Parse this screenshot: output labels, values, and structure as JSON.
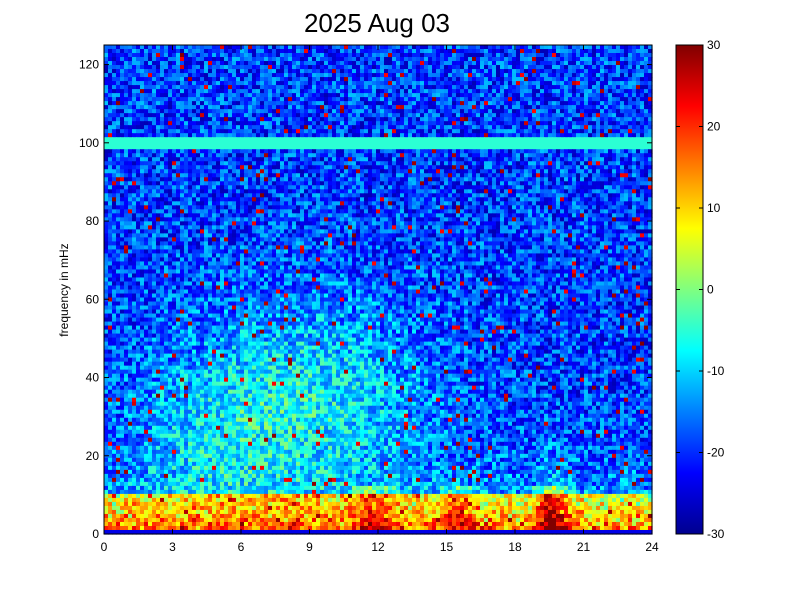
{
  "chart_data": {
    "type": "heatmap",
    "title": "2025 Aug 03",
    "xlabel": "",
    "ylabel": "frequency in mHz",
    "xlim": [
      0,
      24
    ],
    "ylim": [
      0,
      125
    ],
    "x_ticks": [
      "0",
      "3",
      "6",
      "9",
      "12",
      "15",
      "18",
      "21",
      "24"
    ],
    "y_ticks": [
      "0",
      "20",
      "40",
      "60",
      "80",
      "100",
      "120"
    ],
    "colorbar": {
      "min": -30,
      "max": 30,
      "ticks": [
        "-30",
        "-20",
        "-10",
        "0",
        "10",
        "20",
        "30"
      ],
      "colormap": "jet"
    },
    "features": {
      "horizontal_line_mhz": 100,
      "low_freq_band_mhz": [
        0,
        10
      ],
      "strong_bursts_hours": [
        11.5,
        15.5,
        19.5
      ]
    },
    "grid": false
  }
}
